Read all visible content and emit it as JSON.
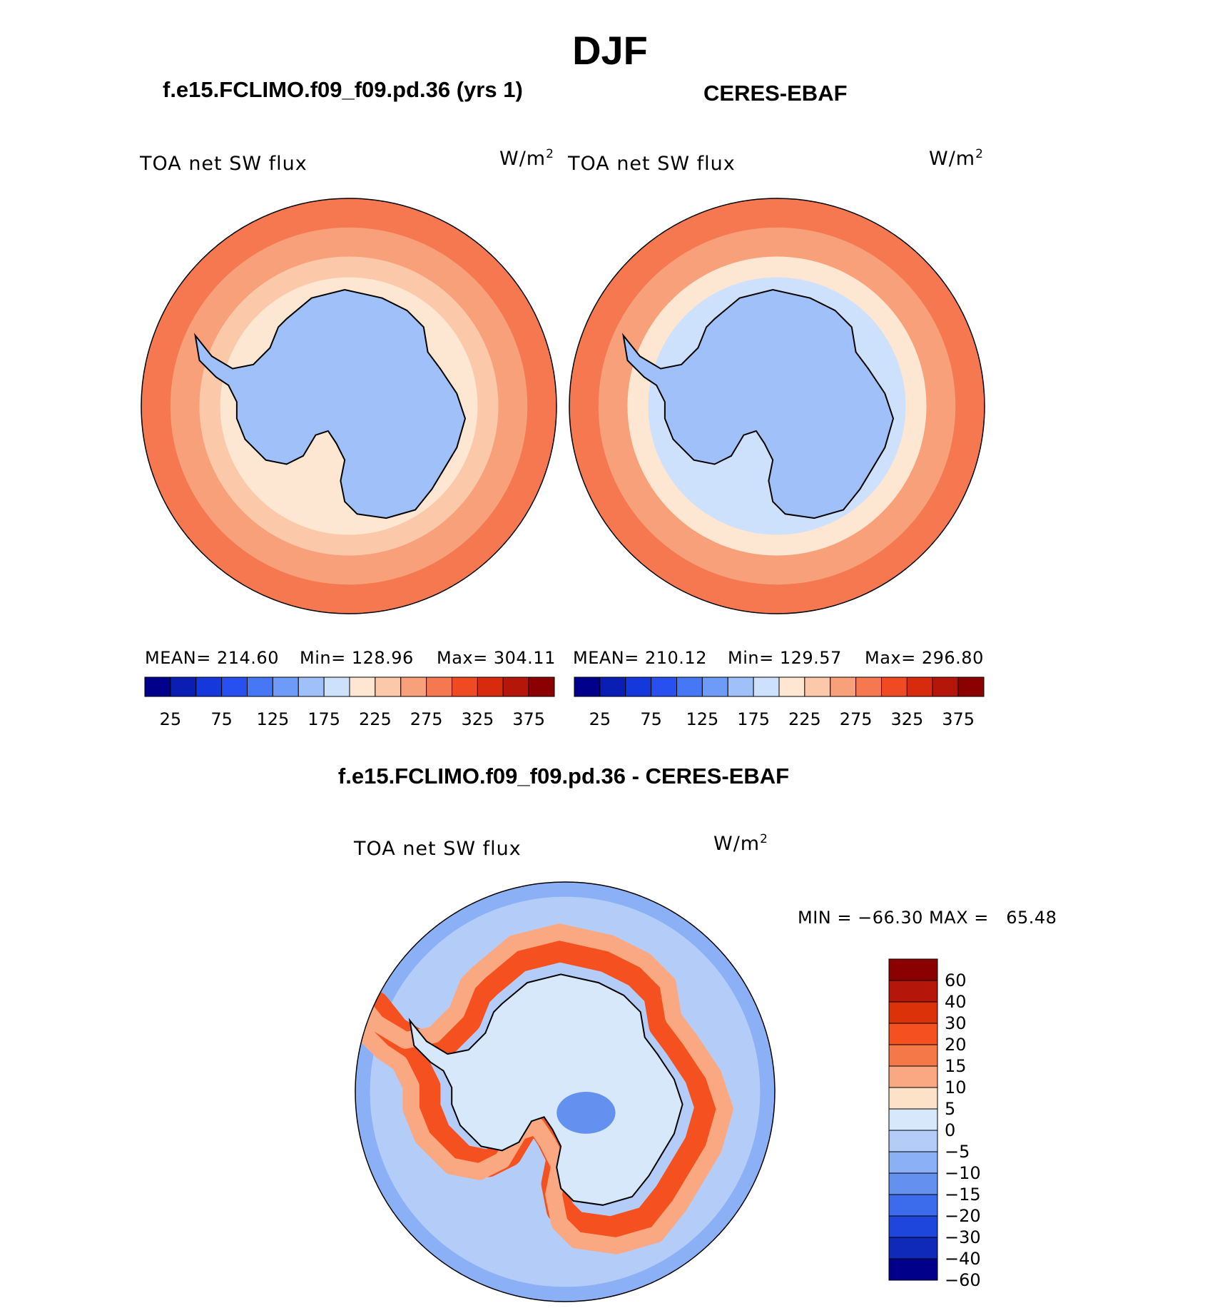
{
  "page": {
    "season": "DJF",
    "panels": {
      "model": {
        "title": "f.e15.FCLIMO.f09_f09.pd.36 (yrs 1)",
        "variable": "TOA net SW flux",
        "units_base": "W/m",
        "units_exp": "2",
        "mean_label": "MEAN= 214.60",
        "min_label": "Min= 128.96",
        "max_label": "Max= 304.11"
      },
      "obs": {
        "title": "CERES-EBAF",
        "variable": "TOA net SW flux",
        "units_base": "W/m",
        "units_exp": "2",
        "mean_label": "MEAN= 210.12",
        "min_label": "Min= 129.57",
        "max_label": "Max= 296.80"
      },
      "diff": {
        "title": "f.e15.FCLIMO.f09_f09.pd.36 - CERES-EBAF",
        "variable": "TOA net SW flux",
        "units_base": "W/m",
        "units_exp": "2",
        "minmax_label": "MIN = −66.30 MAX =   65.48"
      }
    }
  },
  "chart_data": [
    {
      "type": "heatmap",
      "projection": "south-polar-stereographic",
      "title": "f.e15.FCLIMO.f09_f09.pd.36 (yrs 1)",
      "variable": "TOA net SW flux",
      "units": "W/m2",
      "stats": {
        "mean": 214.6,
        "min": 128.96,
        "max": 304.11
      },
      "colorbar": {
        "orientation": "horizontal",
        "levels": [
          25,
          50,
          75,
          100,
          125,
          150,
          175,
          200,
          225,
          250,
          275,
          300,
          325,
          350,
          375
        ],
        "tick_labels": [
          "25",
          "75",
          "125",
          "175",
          "225",
          "275",
          "325",
          "375"
        ],
        "colors": [
          "#00008b",
          "#0a1eb4",
          "#1438dc",
          "#2850f0",
          "#4678f5",
          "#6e9bf8",
          "#a0c0fa",
          "#cde0fc",
          "#fde6d2",
          "#fcc8aa",
          "#f7a07a",
          "#f57850",
          "#f04a22",
          "#d82a0c",
          "#b4160a",
          "#8b0000"
        ]
      },
      "description_values": {
        "antarctica": 150,
        "sea_ice_zone": 200,
        "midlatitude_ocean": 260,
        "outer_ring": 290
      }
    },
    {
      "type": "heatmap",
      "projection": "south-polar-stereographic",
      "title": "CERES-EBAF",
      "variable": "TOA net SW flux",
      "units": "W/m2",
      "stats": {
        "mean": 210.12,
        "min": 129.57,
        "max": 296.8
      },
      "colorbar": {
        "orientation": "horizontal",
        "levels": [
          25,
          50,
          75,
          100,
          125,
          150,
          175,
          200,
          225,
          250,
          275,
          300,
          325,
          350,
          375
        ],
        "tick_labels": [
          "25",
          "75",
          "125",
          "175",
          "225",
          "275",
          "325",
          "375"
        ],
        "colors": [
          "#00008b",
          "#0a1eb4",
          "#1438dc",
          "#2850f0",
          "#4678f5",
          "#6e9bf8",
          "#a0c0fa",
          "#cde0fc",
          "#fde6d2",
          "#fcc8aa",
          "#f7a07a",
          "#f57850",
          "#f04a22",
          "#d82a0c",
          "#b4160a",
          "#8b0000"
        ]
      },
      "description_values": {
        "antarctica": 150,
        "sea_ice_zone": 190,
        "midlatitude_ocean": 255,
        "outer_ring": 285
      }
    },
    {
      "type": "heatmap",
      "projection": "south-polar-stereographic",
      "title": "f.e15.FCLIMO.f09_f09.pd.36 - CERES-EBAF",
      "variable": "TOA net SW flux",
      "units": "W/m2",
      "stats": {
        "min": -66.3,
        "max": 65.48
      },
      "colorbar": {
        "orientation": "vertical",
        "levels": [
          -60,
          -40,
          -30,
          -20,
          -15,
          -10,
          -5,
          0,
          5,
          10,
          15,
          20,
          30,
          40,
          60
        ],
        "tick_labels": [
          "60",
          "40",
          "30",
          "20",
          "15",
          "10",
          "5",
          "0",
          "−5",
          "−10",
          "−15",
          "−20",
          "−30",
          "−40",
          "−60"
        ],
        "colors_top_to_bottom": [
          "#8b0000",
          "#b4160a",
          "#dc320a",
          "#f55020",
          "#f57848",
          "#faa882",
          "#fde2c8",
          "#d6e8fa",
          "#b4cdf8",
          "#8cb0f5",
          "#6490f0",
          "#3c6ceb",
          "#1e46dc",
          "#0f2ab9",
          "#00008b"
        ]
      }
    }
  ]
}
